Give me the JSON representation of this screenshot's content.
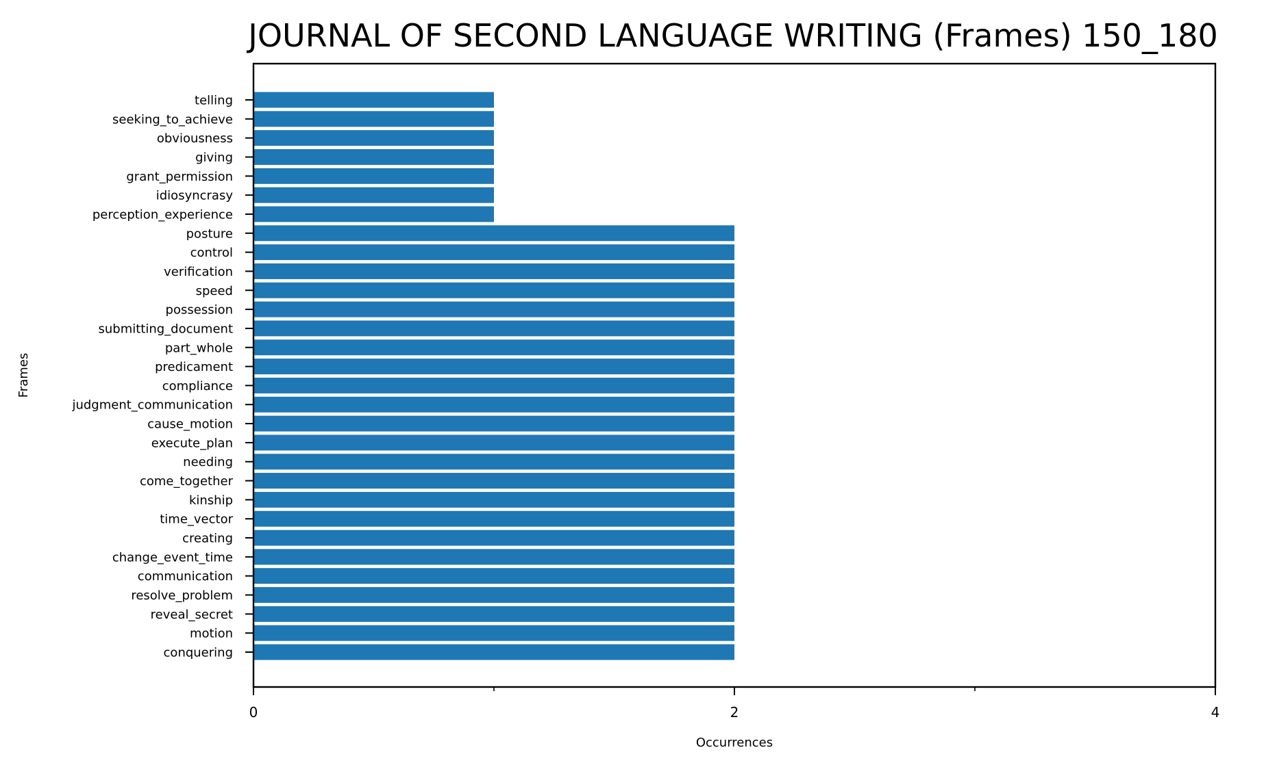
{
  "chart_data": {
    "type": "bar",
    "orientation": "horizontal",
    "title": "JOURNAL OF SECOND LANGUAGE WRITING (Frames) 150_180",
    "xlabel": "Occurrences",
    "ylabel": "Frames",
    "xlim": [
      0,
      4
    ],
    "xticks_major": [
      0,
      2,
      4
    ],
    "xticks_minor": [
      1,
      3
    ],
    "grid": false,
    "bar_color": "#1f77b4",
    "categories": [
      "telling",
      "seeking_to_achieve",
      "obviousness",
      "giving",
      "grant_permission",
      "idiosyncrasy",
      "perception_experience",
      "posture",
      "control",
      "verification",
      "speed",
      "possession",
      "submitting_document",
      "part_whole",
      "predicament",
      "compliance",
      "judgment_communication",
      "cause_motion",
      "execute_plan",
      "needing",
      "come_together",
      "kinship",
      "time_vector",
      "creating",
      "change_event_time",
      "communication",
      "resolve_problem",
      "reveal_secret",
      "motion",
      "conquering"
    ],
    "values": [
      1,
      1,
      1,
      1,
      1,
      1,
      1,
      2,
      2,
      2,
      2,
      2,
      2,
      2,
      2,
      2,
      2,
      2,
      2,
      2,
      2,
      2,
      2,
      2,
      2,
      2,
      2,
      2,
      2,
      2
    ]
  }
}
